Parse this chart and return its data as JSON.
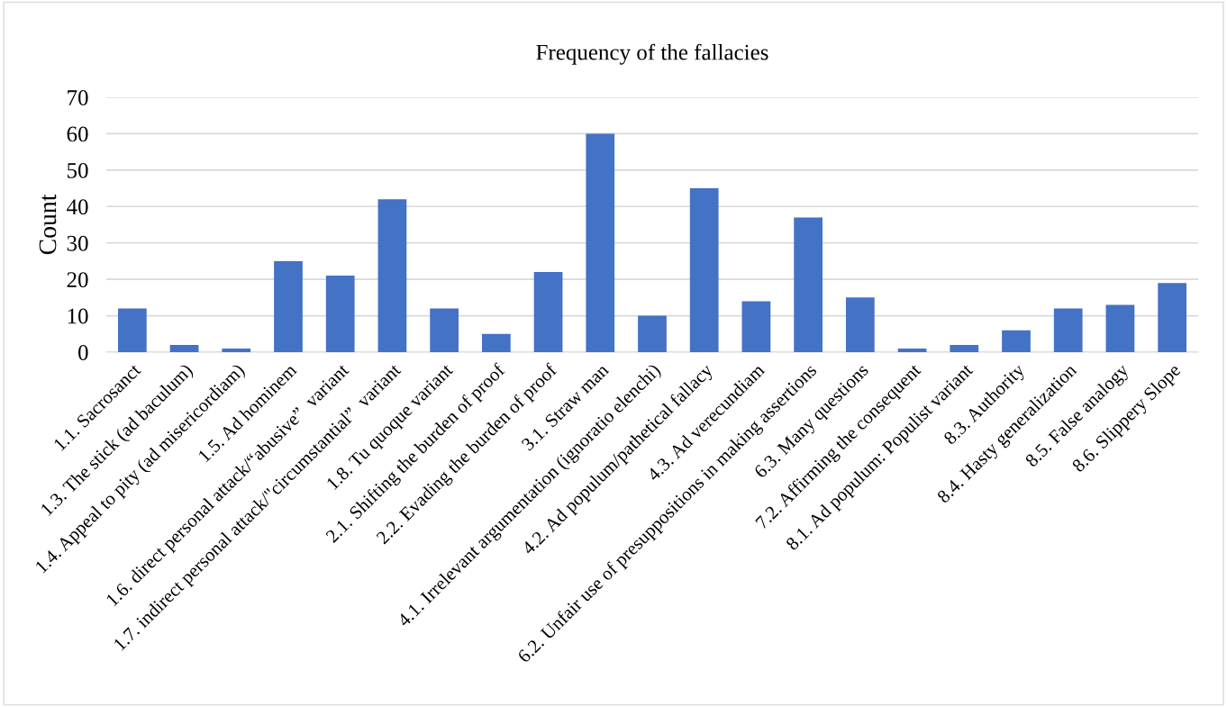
{
  "chart_data": {
    "type": "bar",
    "title": "Frequency of the fallacies",
    "ylabel": "Count",
    "categories": [
      "1.1. Sacrosanct",
      "1.3. The stick (ad baculum)",
      "1.4. Appeal to pity (ad misericordiam)",
      "1.5. Ad hominem",
      "1.6. direct personal attack/“abusive”  variant",
      "1.7. indirect personal attack/\"circumstantial”  variant",
      "1.8. Tu quoque variant",
      "2.1. Shifting the burden of proof",
      "2.2. Evading the burden of proof",
      "3.1. Straw man",
      "4.1. Irrelevant argumentation (ignoratio elenchi)",
      "4.2. Ad populum/pathetical fallacy",
      "4.3. Ad verecundiam",
      "6.2. Unfair use of presuppositions in making assertions",
      "6.3. Many questions",
      "7.2. Affirming the consequent",
      "8.1. Ad populum: Populist variant",
      "8.3. Authority",
      "8.4. Hasty generalization",
      "8.5. False analogy",
      "8.6. Slippery Slope"
    ],
    "values": [
      12,
      2,
      1,
      25,
      21,
      42,
      12,
      5,
      22,
      60,
      10,
      45,
      14,
      37,
      15,
      1,
      2,
      6,
      12,
      13,
      19
    ],
    "color": "#4472c4",
    "ylim": [
      0,
      70
    ],
    "yticks": [
      0,
      10,
      20,
      30,
      40,
      50,
      60,
      70
    ],
    "grid": "y"
  }
}
